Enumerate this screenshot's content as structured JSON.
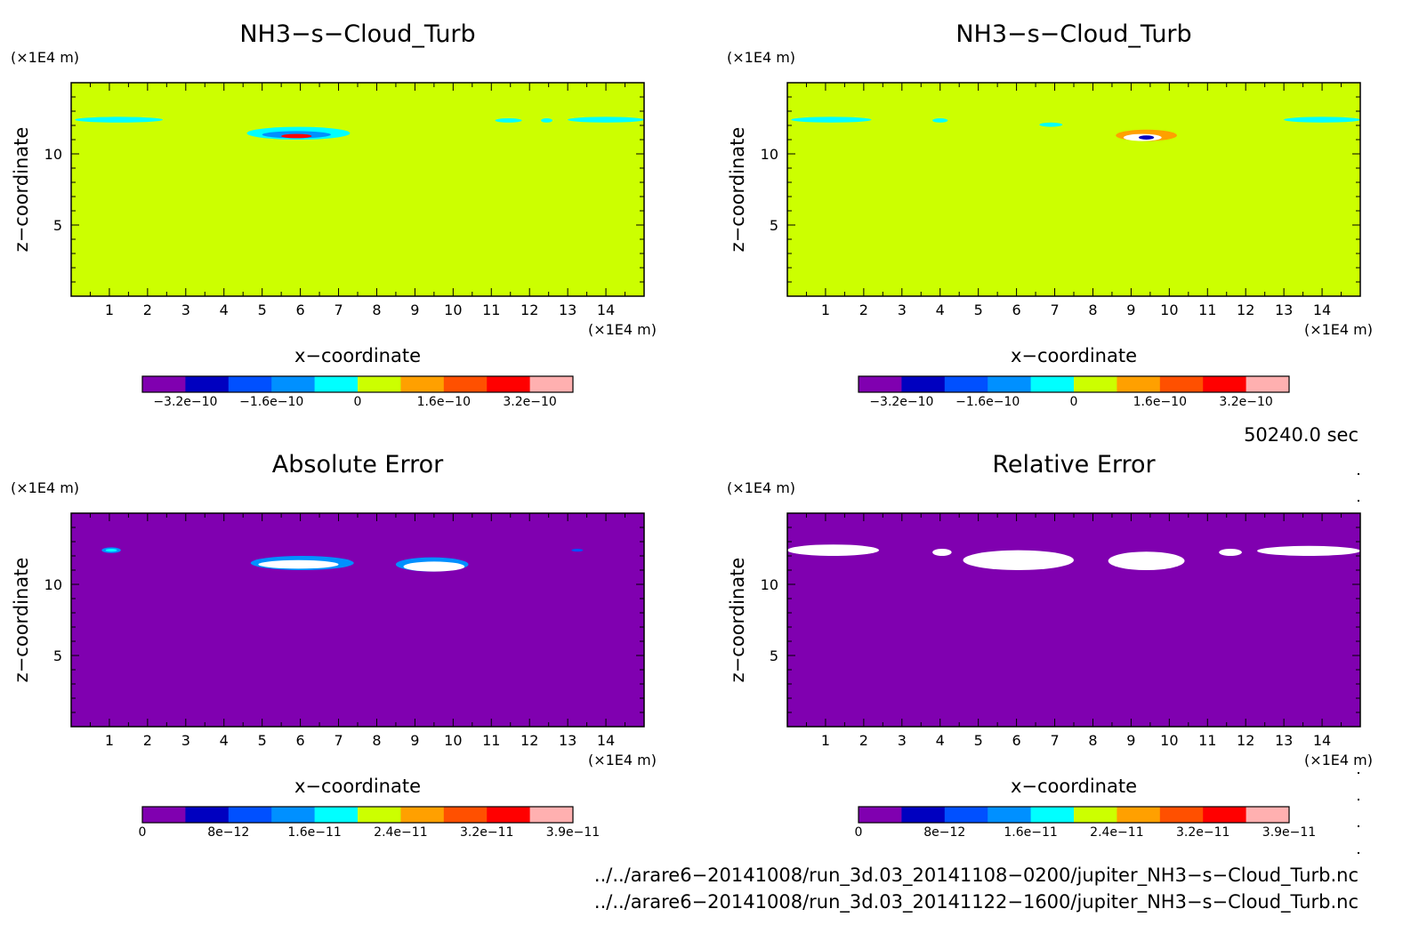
{
  "panels": [
    {
      "title": "NH3−s−Cloud_Turb",
      "yunit": "(×1E4 m)",
      "xunit": "(×1E4 m)",
      "xlabel": "x−coordinate",
      "ylabel": "z−coordinate",
      "colorbar_labels": [
        "−3.2e−10",
        "−1.6e−10",
        "0",
        "1.6e−10",
        "3.2e−10"
      ]
    },
    {
      "title": "NH3−s−Cloud_Turb",
      "yunit": "(×1E4 m)",
      "xunit": "(×1E4 m)",
      "xlabel": "x−coordinate",
      "ylabel": "z−coordinate",
      "colorbar_labels": [
        "−3.2e−10",
        "−1.6e−10",
        "0",
        "1.6e−10",
        "3.2e−10"
      ]
    },
    {
      "title": "Absolute Error",
      "yunit": "(×1E4 m)",
      "xunit": "(×1E4 m)",
      "xlabel": "x−coordinate",
      "ylabel": "z−coordinate",
      "colorbar_labels": [
        "0",
        "8e−12",
        "1.6e−11",
        "2.4e−11",
        "3.2e−11",
        "3.9e−11"
      ]
    },
    {
      "title": "Relative Error",
      "yunit": "(×1E4 m)",
      "xunit": "(×1E4 m)",
      "xlabel": "x−coordinate",
      "ylabel": "z−coordinate",
      "colorbar_labels": [
        "0",
        "8e−12",
        "1.6e−11",
        "2.4e−11",
        "3.2e−11",
        "3.9e−11"
      ]
    }
  ],
  "time_label": "50240.0 sec",
  "files": [
    "../../arare6−20141008/run_3d.03_20141108−0200/jupiter_NH3−s−Cloud_Turb.nc",
    "../../arare6−20141008/run_3d.03_20141122−1600/jupiter_NH3−s−Cloud_Turb.nc"
  ],
  "chart_data": [
    {
      "type": "heatmap",
      "title": "NH3−s−Cloud_Turb",
      "xlabel": "x−coordinate",
      "ylabel": "z−coordinate",
      "xlim": [
        0,
        15
      ],
      "ylim": [
        0,
        15
      ],
      "xticks": [
        1,
        2,
        3,
        4,
        5,
        6,
        7,
        8,
        9,
        10,
        11,
        12,
        13,
        14
      ],
      "yticks": [
        5,
        10
      ],
      "background_color": "#ccff00",
      "colorbar": {
        "colors": [
          "#8000b0",
          "#0000c0",
          "#0050ff",
          "#0090ff",
          "#00ffff",
          "#ccff00",
          "#ffa000",
          "#ff5000",
          "#ff0000",
          "#ffb0b0"
        ],
        "labels": [
          "−3.2e−10",
          "−1.6e−10",
          "0",
          "1.6e−10",
          "3.2e−10"
        ]
      },
      "features": [
        {
          "color": "#00ffff",
          "x": [
            0.1,
            2.4
          ],
          "z": [
            12.2,
            12.6
          ]
        },
        {
          "color": "#00ffff",
          "x": [
            4.6,
            7.3
          ],
          "z": [
            11.0,
            11.9
          ]
        },
        {
          "color": "#0090ff",
          "x": [
            5.0,
            6.8
          ],
          "z": [
            11.1,
            11.6
          ]
        },
        {
          "color": "#ff0000",
          "x": [
            5.5,
            6.3
          ],
          "z": [
            11.1,
            11.4
          ]
        },
        {
          "color": "#00ffff",
          "x": [
            11.1,
            11.8
          ],
          "z": [
            12.2,
            12.5
          ]
        },
        {
          "color": "#00ffff",
          "x": [
            12.3,
            12.6
          ],
          "z": [
            12.2,
            12.5
          ]
        },
        {
          "color": "#00ffff",
          "x": [
            13.0,
            15.0
          ],
          "z": [
            12.2,
            12.6
          ]
        }
      ]
    },
    {
      "type": "heatmap",
      "title": "NH3−s−Cloud_Turb",
      "xlabel": "x−coordinate",
      "ylabel": "z−coordinate",
      "xlim": [
        0,
        15
      ],
      "ylim": [
        0,
        15
      ],
      "xticks": [
        1,
        2,
        3,
        4,
        5,
        6,
        7,
        8,
        9,
        10,
        11,
        12,
        13,
        14
      ],
      "yticks": [
        5,
        10
      ],
      "background_color": "#ccff00",
      "colorbar": {
        "colors": [
          "#8000b0",
          "#0000c0",
          "#0050ff",
          "#0090ff",
          "#00ffff",
          "#ccff00",
          "#ffa000",
          "#ff5000",
          "#ff0000",
          "#ffb0b0"
        ],
        "labels": [
          "−3.2e−10",
          "−1.6e−10",
          "0",
          "1.6e−10",
          "3.2e−10"
        ]
      },
      "features": [
        {
          "color": "#00ffff",
          "x": [
            0.1,
            2.2
          ],
          "z": [
            12.2,
            12.6
          ]
        },
        {
          "color": "#00ffff",
          "x": [
            3.8,
            4.2
          ],
          "z": [
            12.2,
            12.5
          ]
        },
        {
          "color": "#00ffff",
          "x": [
            6.6,
            7.2
          ],
          "z": [
            11.9,
            12.2
          ]
        },
        {
          "color": "#ffa000",
          "x": [
            8.6,
            10.2
          ],
          "z": [
            10.9,
            11.7
          ]
        },
        {
          "color": "#ffffff",
          "x": [
            8.8,
            9.8
          ],
          "z": [
            10.9,
            11.4
          ]
        },
        {
          "color": "#0000c0",
          "x": [
            9.2,
            9.6
          ],
          "z": [
            11.0,
            11.3
          ]
        },
        {
          "color": "#00ffff",
          "x": [
            13.0,
            15.0
          ],
          "z": [
            12.2,
            12.6
          ]
        }
      ]
    },
    {
      "type": "heatmap",
      "title": "Absolute Error",
      "xlabel": "x−coordinate",
      "ylabel": "z−coordinate",
      "xlim": [
        0,
        15
      ],
      "ylim": [
        0,
        15
      ],
      "xticks": [
        1,
        2,
        3,
        4,
        5,
        6,
        7,
        8,
        9,
        10,
        11,
        12,
        13,
        14
      ],
      "yticks": [
        5,
        10
      ],
      "background_color": "#8000b0",
      "colorbar": {
        "colors": [
          "#8000b0",
          "#0000c0",
          "#0050ff",
          "#0090ff",
          "#00ffff",
          "#ccff00",
          "#ffa000",
          "#ff5000",
          "#ff0000",
          "#ffb0b0"
        ],
        "labels": [
          "0",
          "8e−12",
          "1.6e−11",
          "2.4e−11",
          "3.2e−11",
          "3.9e−11"
        ]
      },
      "features": [
        {
          "color": "#0090ff",
          "x": [
            0.8,
            1.3
          ],
          "z": [
            12.2,
            12.6
          ]
        },
        {
          "color": "#00ffff",
          "x": [
            0.9,
            1.2
          ],
          "z": [
            12.3,
            12.5
          ]
        },
        {
          "color": "#0090ff",
          "x": [
            4.7,
            7.4
          ],
          "z": [
            11.0,
            12.0
          ]
        },
        {
          "color": "#ffffff",
          "x": [
            4.9,
            7.0
          ],
          "z": [
            11.1,
            11.7
          ]
        },
        {
          "color": "#0090ff",
          "x": [
            8.5,
            10.4
          ],
          "z": [
            10.9,
            11.9
          ]
        },
        {
          "color": "#ffffff",
          "x": [
            8.7,
            10.3
          ],
          "z": [
            10.9,
            11.6
          ]
        },
        {
          "color": "#0050ff",
          "x": [
            13.1,
            13.4
          ],
          "z": [
            12.3,
            12.5
          ]
        }
      ]
    },
    {
      "type": "heatmap",
      "title": "Relative Error",
      "xlabel": "x−coordinate",
      "ylabel": "z−coordinate",
      "xlim": [
        0,
        15
      ],
      "ylim": [
        0,
        15
      ],
      "xticks": [
        1,
        2,
        3,
        4,
        5,
        6,
        7,
        8,
        9,
        10,
        11,
        12,
        13,
        14
      ],
      "yticks": [
        5,
        10
      ],
      "background_color": "#8000b0",
      "colorbar": {
        "colors": [
          "#8000b0",
          "#0000c0",
          "#0050ff",
          "#0090ff",
          "#00ffff",
          "#ccff00",
          "#ffa000",
          "#ff5000",
          "#ff0000",
          "#ffb0b0"
        ],
        "labels": [
          "0",
          "8e−12",
          "1.6e−11",
          "2.4e−11",
          "3.2e−11",
          "3.9e−11"
        ]
      },
      "features": [
        {
          "color": "#ffffff",
          "x": [
            0.0,
            2.4
          ],
          "z": [
            12.0,
            12.8
          ]
        },
        {
          "color": "#ffffff",
          "x": [
            3.8,
            4.3
          ],
          "z": [
            12.0,
            12.5
          ]
        },
        {
          "color": "#ffffff",
          "x": [
            4.6,
            7.5
          ],
          "z": [
            11.0,
            12.4
          ]
        },
        {
          "color": "#ffffff",
          "x": [
            8.4,
            10.4
          ],
          "z": [
            11.0,
            12.3
          ]
        },
        {
          "color": "#ffffff",
          "x": [
            11.3,
            11.9
          ],
          "z": [
            12.0,
            12.5
          ]
        },
        {
          "color": "#ffffff",
          "x": [
            12.3,
            15.0
          ],
          "z": [
            12.0,
            12.7
          ]
        }
      ]
    }
  ]
}
